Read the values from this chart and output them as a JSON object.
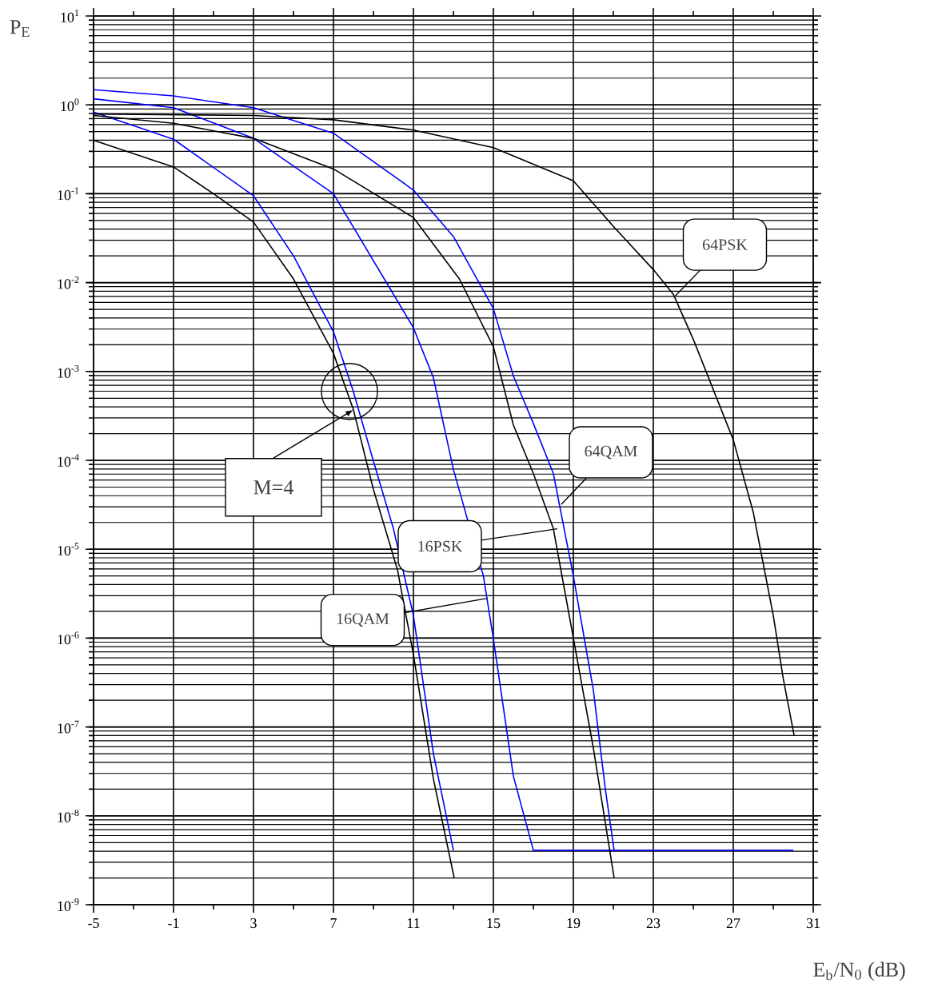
{
  "chart_data": {
    "type": "line",
    "xlabel": "E$_{b}$/N$_{0}$ (dB)",
    "ylabel": "P$_{E}$",
    "xlim": [
      -5,
      31
    ],
    "xticks": [
      -5,
      -1,
      3,
      7,
      11,
      15,
      19,
      23,
      27,
      31
    ],
    "ylim": [
      1e-09,
      10
    ],
    "log": "y",
    "yticks": [
      {
        "value": 1e-09,
        "label": "10$^{-9}$"
      },
      {
        "value": 1e-08,
        "label": "10$^{-8}$"
      },
      {
        "value": 1e-07,
        "label": "10$^{-7}$"
      },
      {
        "value": 1e-06,
        "label": "10$^{-6}$"
      },
      {
        "value": 1e-05,
        "label": "10$^{-5}$"
      },
      {
        "value": 0.0001,
        "label": "10$^{-4}$"
      },
      {
        "value": 0.001,
        "label": "10$^{-3}$"
      },
      {
        "value": 0.01,
        "label": "10$^{-2}$"
      },
      {
        "value": 0.1,
        "label": "10$^{-1}$"
      },
      {
        "value": 1,
        "label": "10$^{0}$"
      },
      {
        "value": 10,
        "label": "10$^{1}$"
      }
    ],
    "grid": true,
    "marker": "none",
    "line_style": "solid",
    "series": [
      {
        "color": "#000000",
        "x": [
          -5,
          -1,
          1,
          3,
          5,
          7,
          8,
          9,
          10.2,
          11,
          12,
          13.04
        ],
        "values": [
          0.4,
          0.2,
          0.1,
          0.048,
          0.011,
          0.0016,
          0.00037,
          4.7e-05,
          5.9e-06,
          6.5e-07,
          2.6e-08,
          2e-09
        ]
      },
      {
        "color": "#0000ff",
        "x": [
          -5,
          -1,
          3,
          5,
          7,
          8,
          9,
          10,
          11,
          12,
          13
        ],
        "values": [
          0.83,
          0.41,
          0.095,
          0.02,
          0.0028,
          0.00059,
          9.8e-05,
          1.7e-05,
          1.8e-06,
          5e-08,
          4.1e-09
        ]
      },
      {
        "color": "#0000ff",
        "x": [
          -5,
          -1,
          3,
          7,
          11,
          12,
          13,
          14.5,
          15,
          16,
          17,
          30
        ],
        "values": [
          1.17,
          0.93,
          0.42,
          0.1,
          0.0031,
          0.00085,
          7.9e-05,
          5e-06,
          9.8e-07,
          2.8e-08,
          4.1e-09,
          4.1e-09
        ]
      },
      {
        "color": "#000000",
        "x": [
          -5,
          -1,
          3,
          7,
          11,
          13.3,
          15,
          16,
          17,
          18,
          19,
          20,
          21.04
        ],
        "values": [
          0.76,
          0.62,
          0.42,
          0.19,
          0.054,
          0.011,
          0.0019,
          0.00025,
          7.1e-05,
          1.7e-05,
          1e-06,
          5.8e-08,
          2e-09
        ]
      },
      {
        "color": "#0000ff",
        "x": [
          -5,
          -1,
          3,
          7,
          11,
          13,
          15,
          16,
          17,
          18,
          19,
          20,
          20.6,
          21.04
        ],
        "values": [
          1.48,
          1.26,
          0.93,
          0.48,
          0.11,
          0.033,
          0.0051,
          0.00089,
          0.00026,
          7.1e-05,
          5e-06,
          2.6e-07,
          2e-08,
          4.1e-09
        ]
      },
      {
        "color": "#000000",
        "x": [
          -5,
          3,
          7,
          11,
          15,
          19,
          21,
          23,
          24,
          25,
          27,
          28,
          29,
          29.5,
          30.04
        ],
        "values": [
          0.79,
          0.76,
          0.68,
          0.52,
          0.33,
          0.14,
          0.043,
          0.014,
          0.0074,
          0.0023,
          0.00017,
          2.6e-05,
          1.8e-06,
          3.5e-07,
          8.1e-08
        ]
      }
    ],
    "annotations": [
      {
        "text": "64PSK",
        "x": 24.1,
        "y": 0.0071
      },
      {
        "text": "64QAM",
        "x": 18.4,
        "y": 3.2e-05
      },
      {
        "text": "16PSK",
        "x": 18.2,
        "y": 1.7e-05
      },
      {
        "text": "16QAM",
        "x": 14.7,
        "y": 2.8e-06
      },
      {
        "text": "M=4",
        "x": 8,
        "y": 0.00037
      }
    ]
  }
}
